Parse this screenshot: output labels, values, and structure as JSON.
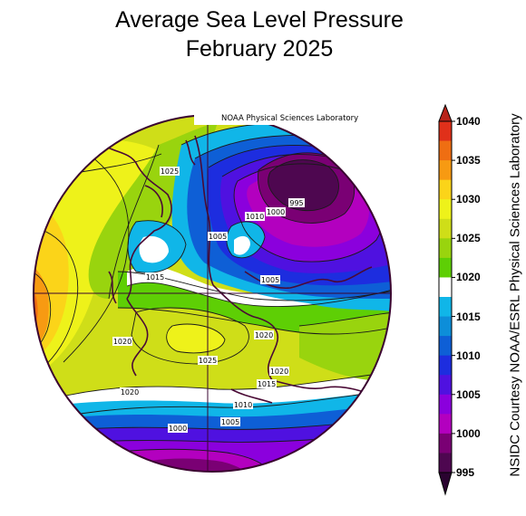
{
  "title": {
    "line1": "Average Sea Level Pressure",
    "line2": "February 2025"
  },
  "credit_box": "NOAA Physical Sciences Laboratory",
  "side_credit": "NSIDC Courtesy NOAA/ESRL Physical Sciences Laboratory",
  "map": {
    "projection": "north polar stereographic",
    "variable": "sea level pressure",
    "units": "mb",
    "contour_labels": [
      "1025",
      "995",
      "1000",
      "1010",
      "1005",
      "1015",
      "1005",
      "1020",
      "1025",
      "1020",
      "1020",
      "1015",
      "1020",
      "1010",
      "1005",
      "1000"
    ]
  },
  "colorbar": {
    "ticks": [
      "1040",
      "1035",
      "1030",
      "1025",
      "1020",
      "1015",
      "1010",
      "1005",
      "1000",
      "995"
    ],
    "colors": [
      "#e0301a",
      "#ef6e12",
      "#f79a12",
      "#fbd419",
      "#eef21a",
      "#cfde18",
      "#99d40e",
      "#5ecf05",
      "#ffffff",
      "#10b6e8",
      "#0d8ed9",
      "#0e5fd6",
      "#1d2ddf",
      "#4f11e0",
      "#8b00dd",
      "#b300bf",
      "#7a0074",
      "#4e0750"
    ]
  }
}
